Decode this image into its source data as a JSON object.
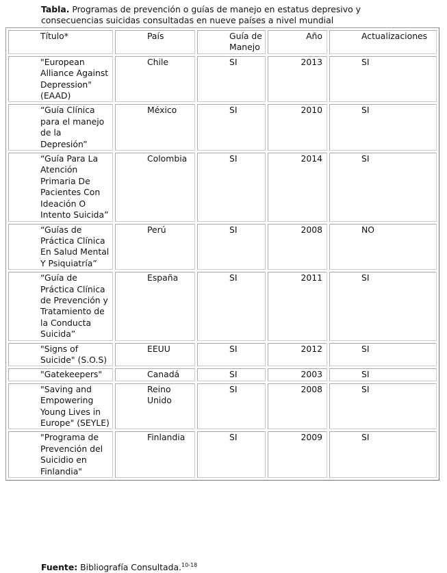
{
  "caption": {
    "label": "Tabla.",
    "text": "Programas de prevención o guías de manejo en estatus depresivo y consecuencias suicidas consultadas en nueve países a nivel mundial"
  },
  "table": {
    "headers": [
      "Título*",
      "País",
      "Guía de Manejo",
      "Año",
      "Actualizaciones"
    ],
    "rows": [
      [
        "\"European Alliance Against Depression\" (EAAD)",
        "Chile",
        "SI",
        "2013",
        "SI"
      ],
      [
        "“Guía Clínica para el manejo de la Depresión”",
        "México",
        "SI",
        "2010",
        "SI"
      ],
      [
        "“Guía Para La Atención Primaria De Pacientes Con Ideación O Intento Suicida”",
        "Colombia",
        "SI",
        "2014",
        "SI"
      ],
      [
        "“Guías de Práctica Clínica En Salud Mental Y Psiquiatría”",
        "Perú",
        "SI",
        "2008",
        "NO"
      ],
      [
        "“Guía de Práctica Clínica de Prevención y Tratamiento de la Conducta Suicida”",
        "España",
        "SI",
        "2011",
        "SI"
      ],
      [
        "\"Signs of Suicide\" (S.O.S)",
        "EEUU",
        "SI",
        "2012",
        "SI"
      ],
      [
        "\"Gatekeepers\"",
        "Canadá",
        "SI",
        "2003",
        "SI"
      ],
      [
        "\"Saving and Empowering Young Lives in Europe\" (SEYLE)",
        "Reino Unido",
        "SI",
        "2008",
        "SI"
      ],
      [
        "\"Programa de Prevención del Suicidio en Finlandia\"",
        "Finlandia",
        "SI",
        "2009",
        "SI"
      ]
    ]
  },
  "footer": {
    "label": "Fuente:",
    "text": "Bibliografía Consultada.",
    "refs": "10-18"
  }
}
